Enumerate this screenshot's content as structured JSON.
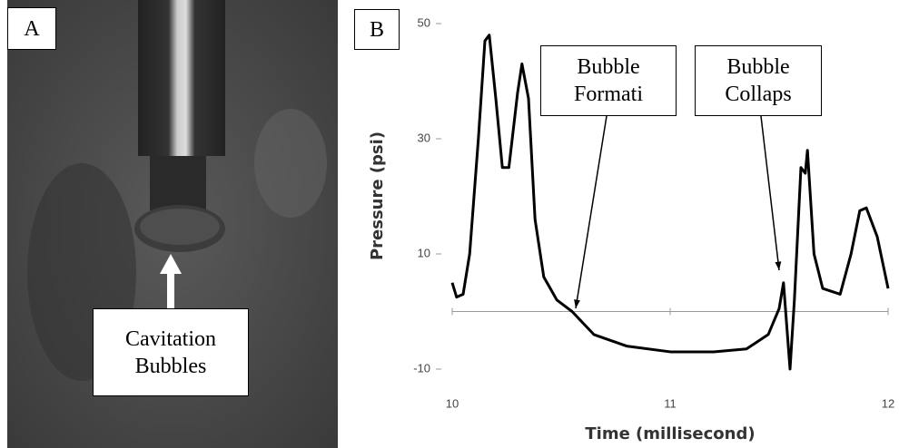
{
  "panel_a": {
    "label": "A",
    "annotation": "Cavitation Bubbles"
  },
  "chart_data": {
    "type": "line",
    "panel_label": "B",
    "x_label": "Time (millisecond)",
    "y_label": "Pressure (psi)",
    "xlim": [
      10,
      12
    ],
    "xticks": [
      10,
      11,
      12
    ],
    "ylim": [
      -10,
      50
    ],
    "yticks": [
      -10,
      10,
      30,
      50
    ],
    "series": [
      {
        "name": "Pressure",
        "color": "#000000",
        "x": [
          10.0,
          10.02,
          10.05,
          10.08,
          10.12,
          10.15,
          10.17,
          10.2,
          10.23,
          10.26,
          10.3,
          10.32,
          10.35,
          10.38,
          10.42,
          10.48,
          10.55,
          10.65,
          10.8,
          11.0,
          11.2,
          11.35,
          11.45,
          11.5,
          11.52,
          11.55,
          11.57,
          11.6,
          11.62,
          11.63,
          11.66,
          11.7,
          11.78,
          11.83,
          11.87,
          11.9,
          11.95,
          12.0
        ],
        "values": [
          5,
          2.5,
          3,
          10,
          30,
          47,
          48,
          37,
          25,
          25,
          38,
          43,
          37,
          16,
          6,
          2,
          0,
          -4,
          -6,
          -7,
          -7,
          -6.5,
          -4,
          0.5,
          5,
          -10,
          2,
          25,
          24,
          28,
          10,
          4,
          3,
          10,
          17.5,
          18,
          13,
          4
        ]
      }
    ],
    "annotations": [
      {
        "text": "Bubble Formati"
      },
      {
        "text": "Bubble Collaps"
      }
    ]
  }
}
